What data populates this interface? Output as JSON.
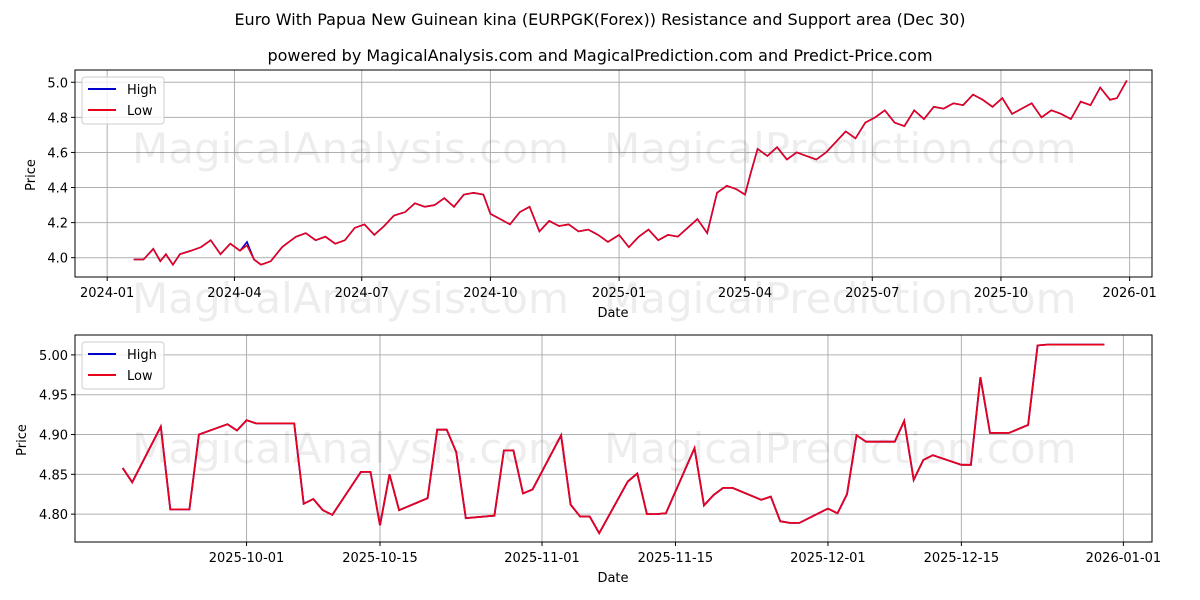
{
  "header": {
    "title": "Euro With Papua New Guinean kina (EURPGK(Forex)) Resistance and Support area (Dec 30)",
    "subtitle": "powered by MagicalAnalysis.com and MagicalPrediction.com and Predict-Price.com"
  },
  "watermarks": [
    "MagicalAnalysis.com",
    "MagicalPrediction.com"
  ],
  "colors": {
    "high": "#0000cc",
    "low": "#e8001c",
    "grid": "#b0b0b0"
  },
  "chart_data": [
    {
      "type": "line",
      "title": "Euro With Papua New Guinean kina (EURPGK(Forex)) Resistance and Support area (Dec 30)",
      "xlabel": "Date",
      "ylabel": "Price",
      "ylim": [
        3.89,
        5.07
      ],
      "xlim": [
        "2023-12-09",
        "2026-01-17"
      ],
      "grid": true,
      "legend": {
        "position": "upper left",
        "entries": [
          "High",
          "Low"
        ]
      },
      "x_ticks": [
        "2024-01",
        "2024-04",
        "2024-07",
        "2024-10",
        "2025-01",
        "2025-04",
        "2025-07",
        "2025-10",
        "2026-01"
      ],
      "y_ticks": [
        "4.0",
        "4.2",
        "4.4",
        "4.6",
        "4.8",
        "5.0"
      ],
      "x": [
        "2024-01-20",
        "2024-01-27",
        "2024-02-03",
        "2024-02-08",
        "2024-02-12",
        "2024-02-17",
        "2024-02-22",
        "2024-03-01",
        "2024-03-08",
        "2024-03-15",
        "2024-03-22",
        "2024-03-29",
        "2024-04-05",
        "2024-04-10",
        "2024-04-15",
        "2024-04-20",
        "2024-04-27",
        "2024-05-05",
        "2024-05-10",
        "2024-05-15",
        "2024-05-22",
        "2024-05-29",
        "2024-06-05",
        "2024-06-12",
        "2024-06-19",
        "2024-06-26",
        "2024-07-03",
        "2024-07-10",
        "2024-07-17",
        "2024-07-24",
        "2024-08-01",
        "2024-08-08",
        "2024-08-15",
        "2024-08-22",
        "2024-08-29",
        "2024-09-05",
        "2024-09-12",
        "2024-09-19",
        "2024-09-26",
        "2024-10-01",
        "2024-10-08",
        "2024-10-15",
        "2024-10-22",
        "2024-10-29",
        "2024-11-05",
        "2024-11-12",
        "2024-11-19",
        "2024-11-26",
        "2024-12-03",
        "2024-12-10",
        "2024-12-17",
        "2024-12-24",
        "2025-01-01",
        "2025-01-08",
        "2025-01-15",
        "2025-01-22",
        "2025-01-29",
        "2025-02-05",
        "2025-02-12",
        "2025-02-19",
        "2025-02-26",
        "2025-03-05",
        "2025-03-12",
        "2025-03-19",
        "2025-03-26",
        "2025-04-01",
        "2025-04-05",
        "2025-04-10",
        "2025-04-17",
        "2025-04-24",
        "2025-05-01",
        "2025-05-08",
        "2025-05-15",
        "2025-05-22",
        "2025-05-29",
        "2025-06-05",
        "2025-06-12",
        "2025-06-19",
        "2025-06-26",
        "2025-07-03",
        "2025-07-10",
        "2025-07-17",
        "2025-07-24",
        "2025-07-31",
        "2025-08-07",
        "2025-08-14",
        "2025-08-21",
        "2025-08-28",
        "2025-09-04",
        "2025-09-11",
        "2025-09-18",
        "2025-09-25",
        "2025-10-02",
        "2025-10-09",
        "2025-10-16",
        "2025-10-23",
        "2025-10-30",
        "2025-11-06",
        "2025-11-13",
        "2025-11-20",
        "2025-11-27",
        "2025-12-04",
        "2025-12-11",
        "2025-12-18",
        "2025-12-23",
        "2025-12-30"
      ],
      "series": [
        {
          "name": "High",
          "color": "#0000cc",
          "values": [
            3.99,
            3.99,
            4.05,
            3.98,
            4.02,
            3.96,
            4.02,
            4.04,
            4.06,
            4.1,
            4.02,
            4.08,
            4.04,
            4.09,
            3.99,
            3.96,
            3.98,
            4.06,
            4.09,
            4.12,
            4.14,
            4.1,
            4.12,
            4.08,
            4.1,
            4.17,
            4.19,
            4.13,
            4.18,
            4.24,
            4.26,
            4.31,
            4.29,
            4.3,
            4.34,
            4.29,
            4.36,
            4.37,
            4.36,
            4.25,
            4.22,
            4.19,
            4.26,
            4.29,
            4.15,
            4.21,
            4.18,
            4.19,
            4.15,
            4.16,
            4.13,
            4.09,
            4.13,
            4.06,
            4.12,
            4.16,
            4.1,
            4.13,
            4.12,
            4.17,
            4.22,
            4.14,
            4.37,
            4.41,
            4.39,
            4.36,
            4.48,
            4.62,
            4.58,
            4.63,
            4.56,
            4.6,
            4.58,
            4.56,
            4.6,
            4.66,
            4.72,
            4.68,
            4.77,
            4.8,
            4.84,
            4.77,
            4.75,
            4.84,
            4.79,
            4.86,
            4.85,
            4.88,
            4.87,
            4.93,
            4.9,
            4.86,
            4.91,
            4.82,
            4.85,
            4.88,
            4.8,
            4.84,
            4.82,
            4.79,
            4.89,
            4.87,
            4.97,
            4.9,
            4.91,
            5.01
          ]
        },
        {
          "name": "Low",
          "color": "#e8001c",
          "values": [
            3.99,
            3.99,
            4.05,
            3.98,
            4.02,
            3.96,
            4.02,
            4.04,
            4.06,
            4.1,
            4.02,
            4.08,
            4.04,
            4.07,
            3.99,
            3.96,
            3.98,
            4.06,
            4.09,
            4.12,
            4.14,
            4.1,
            4.12,
            4.08,
            4.1,
            4.17,
            4.19,
            4.13,
            4.18,
            4.24,
            4.26,
            4.31,
            4.29,
            4.3,
            4.34,
            4.29,
            4.36,
            4.37,
            4.36,
            4.25,
            4.22,
            4.19,
            4.26,
            4.29,
            4.15,
            4.21,
            4.18,
            4.19,
            4.15,
            4.16,
            4.13,
            4.09,
            4.13,
            4.06,
            4.12,
            4.16,
            4.1,
            4.13,
            4.12,
            4.17,
            4.22,
            4.14,
            4.37,
            4.41,
            4.39,
            4.36,
            4.48,
            4.62,
            4.58,
            4.63,
            4.56,
            4.6,
            4.58,
            4.56,
            4.6,
            4.66,
            4.72,
            4.68,
            4.77,
            4.8,
            4.84,
            4.77,
            4.75,
            4.84,
            4.79,
            4.86,
            4.85,
            4.88,
            4.87,
            4.93,
            4.9,
            4.86,
            4.91,
            4.82,
            4.85,
            4.88,
            4.8,
            4.84,
            4.82,
            4.79,
            4.89,
            4.87,
            4.97,
            4.9,
            4.91,
            5.01
          ]
        }
      ]
    },
    {
      "type": "line",
      "xlabel": "Date",
      "ylabel": "Price",
      "ylim": [
        4.765,
        5.025
      ],
      "xlim": [
        "2025-09-13",
        "2026-01-04"
      ],
      "grid": true,
      "legend": {
        "position": "upper left",
        "entries": [
          "High",
          "Low"
        ]
      },
      "x_ticks": [
        "2025-10-01",
        "2025-10-15",
        "2025-11-01",
        "2025-11-15",
        "2025-12-01",
        "2025-12-15",
        "2026-01-01"
      ],
      "y_ticks": [
        "4.80",
        "4.85",
        "4.90",
        "4.95",
        "5.00"
      ],
      "x": [
        "2025-09-18",
        "2025-09-19",
        "2025-09-22",
        "2025-09-23",
        "2025-09-24",
        "2025-09-25",
        "2025-09-26",
        "2025-09-29",
        "2025-09-30",
        "2025-10-01",
        "2025-10-02",
        "2025-10-03",
        "2025-10-06",
        "2025-10-07",
        "2025-10-08",
        "2025-10-09",
        "2025-10-10",
        "2025-10-13",
        "2025-10-14",
        "2025-10-15",
        "2025-10-16",
        "2025-10-17",
        "2025-10-20",
        "2025-10-21",
        "2025-10-22",
        "2025-10-23",
        "2025-10-24",
        "2025-10-27",
        "2025-10-28",
        "2025-10-29",
        "2025-10-30",
        "2025-10-31",
        "2025-11-03",
        "2025-11-04",
        "2025-11-05",
        "2025-11-06",
        "2025-11-07",
        "2025-11-10",
        "2025-11-11",
        "2025-11-12",
        "2025-11-13",
        "2025-11-14",
        "2025-11-17",
        "2025-11-18",
        "2025-11-19",
        "2025-11-20",
        "2025-11-21",
        "2025-11-24",
        "2025-11-25",
        "2025-11-26",
        "2025-11-27",
        "2025-11-28",
        "2025-12-01",
        "2025-12-02",
        "2025-12-03",
        "2025-12-04",
        "2025-12-05",
        "2025-12-08",
        "2025-12-09",
        "2025-12-10",
        "2025-12-11",
        "2025-12-12",
        "2025-12-15",
        "2025-12-16",
        "2025-12-17",
        "2025-12-18",
        "2025-12-19",
        "2025-12-22",
        "2025-12-23",
        "2025-12-24",
        "2025-12-25",
        "2025-12-26",
        "2025-12-29",
        "2025-12-30"
      ],
      "series": [
        {
          "name": "High",
          "color": "#0000cc",
          "values": [
            4.858,
            4.84,
            4.91,
            4.806,
            4.806,
            4.806,
            4.9,
            4.913,
            4.905,
            4.918,
            4.914,
            4.914,
            4.914,
            4.813,
            4.819,
            4.805,
            4.799,
            4.853,
            4.853,
            4.786,
            4.85,
            4.805,
            4.82,
            4.906,
            4.906,
            4.878,
            4.795,
            4.798,
            4.88,
            4.88,
            4.826,
            4.831,
            4.899,
            4.812,
            4.797,
            4.797,
            4.776,
            4.841,
            4.851,
            4.8,
            4.8,
            4.801,
            4.883,
            4.811,
            4.824,
            4.833,
            4.833,
            4.818,
            4.822,
            4.791,
            4.789,
            4.789,
            4.807,
            4.801,
            4.825,
            4.899,
            4.891,
            4.891,
            4.917,
            4.843,
            4.868,
            4.874,
            4.862,
            4.862,
            4.862,
            4.864,
            4.857,
            4.89,
            4.975,
            4.975,
            4.975,
            4.913,
            4.921,
            4.899
          ]
        },
        {
          "name": "Low",
          "color": "#e8001c",
          "values": [
            4.858,
            4.84,
            4.91,
            4.806,
            4.806,
            4.806,
            4.9,
            4.913,
            4.905,
            4.918,
            4.914,
            4.914,
            4.914,
            4.813,
            4.819,
            4.805,
            4.799,
            4.853,
            4.853,
            4.786,
            4.85,
            4.805,
            4.82,
            4.906,
            4.906,
            4.878,
            4.795,
            4.798,
            4.88,
            4.88,
            4.826,
            4.831,
            4.899,
            4.812,
            4.797,
            4.797,
            4.776,
            4.841,
            4.851,
            4.8,
            4.8,
            4.801,
            4.883,
            4.811,
            4.824,
            4.833,
            4.833,
            4.818,
            4.822,
            4.791,
            4.789,
            4.789,
            4.807,
            4.801,
            4.825,
            4.899,
            4.891,
            4.891,
            4.917,
            4.843,
            4.868,
            4.874,
            4.862,
            4.862,
            4.862,
            4.864,
            4.857,
            4.89,
            4.975,
            4.975,
            4.975,
            4.913,
            4.921,
            4.899
          ]
        }
      ]
    }
  ],
  "bottom_tail": {
    "note_values": [
      4.972,
      4.902,
      4.902,
      4.902,
      4.912,
      5.012,
      5.013,
      5.013,
      5.013,
      5.013
    ]
  }
}
